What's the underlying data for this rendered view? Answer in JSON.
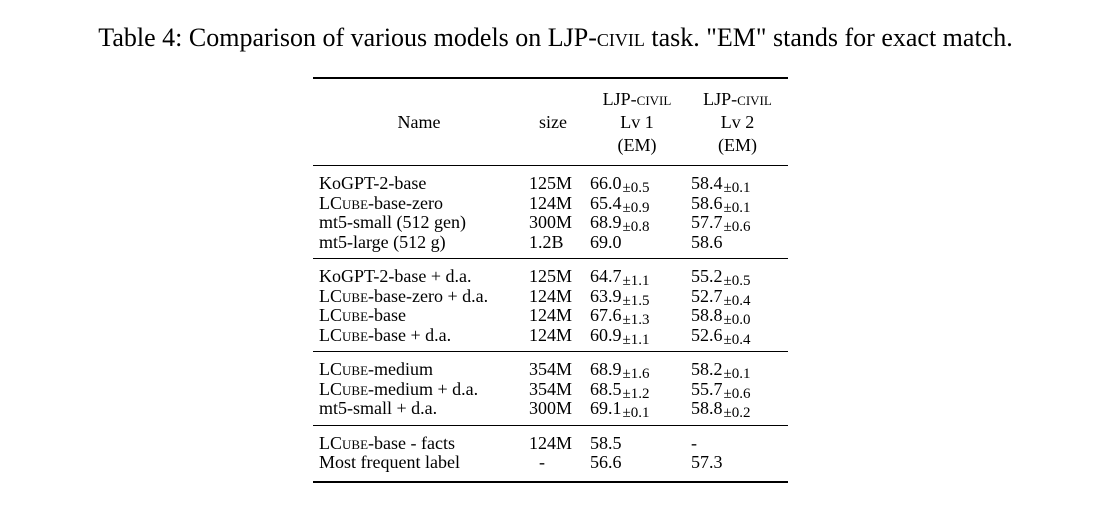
{
  "caption": {
    "prefix": "Table 4: Comparison of various models on LJP-",
    "sc": "civil",
    "suffix": " task. \"EM\" stands for exact match."
  },
  "header": {
    "name": "Name",
    "size": "size",
    "lv1": {
      "line1_a": "LJP-",
      "line1_sc": "civil",
      "line2": "Lv 1",
      "line3": "(EM)"
    },
    "lv2": {
      "line1_a": "LJP-",
      "line1_sc": "civil",
      "line2": "Lv 2",
      "line3": "(EM)"
    }
  },
  "groups": [
    {
      "rows": [
        {
          "name_plain": "KoGPT-2-base",
          "size": "125M",
          "lv1": "66.0",
          "lv1_pm": "±0.5",
          "lv2": "58.4",
          "lv2_pm": "±0.1"
        },
        {
          "name_a": "LC",
          "name_sc": "ube",
          "name_b": "-base-zero",
          "size": "124M",
          "lv1": "65.4",
          "lv1_pm": "±0.9",
          "lv2": "58.6",
          "lv2_pm": "±0.1"
        },
        {
          "name_plain": "mt5-small (512 gen)",
          "size": "300M",
          "lv1": "68.9",
          "lv1_pm": "±0.8",
          "lv2": "57.7",
          "lv2_pm": "±0.6"
        },
        {
          "name_plain": "mt5-large (512 g)",
          "size": "1.2B",
          "lv1": "69.0",
          "lv1_pm": "",
          "lv2": "58.6",
          "lv2_pm": ""
        }
      ]
    },
    {
      "rows": [
        {
          "name_plain": "KoGPT-2-base + d.a.",
          "size": "125M",
          "lv1": "64.7",
          "lv1_pm": "±1.1",
          "lv2": "55.2",
          "lv2_pm": "±0.5"
        },
        {
          "name_a": "LC",
          "name_sc": "ube",
          "name_b": "-base-zero + d.a.",
          "size": "124M",
          "lv1": "63.9",
          "lv1_pm": "±1.5",
          "lv2": "52.7",
          "lv2_pm": "±0.4"
        },
        {
          "name_a": "LC",
          "name_sc": "ube",
          "name_b": "-base",
          "size": "124M",
          "lv1": "67.6",
          "lv1_pm": "±1.3",
          "lv2": "58.8",
          "lv2_pm": "±0.0"
        },
        {
          "name_a": "LC",
          "name_sc": "ube",
          "name_b": "-base + d.a.",
          "size": "124M",
          "lv1": "60.9",
          "lv1_pm": "±1.1",
          "lv2": "52.6",
          "lv2_pm": "±0.4"
        }
      ]
    },
    {
      "rows": [
        {
          "name_a": "LC",
          "name_sc": "ube",
          "name_b": "-medium",
          "size": "354M",
          "lv1": "68.9",
          "lv1_pm": "±1.6",
          "lv2": "58.2",
          "lv2_pm": "±0.1"
        },
        {
          "name_a": "LC",
          "name_sc": "ube",
          "name_b": "-medium + d.a.",
          "size": "354M",
          "lv1": "68.5",
          "lv1_pm": "±1.2",
          "lv2": "55.7",
          "lv2_pm": "±0.6"
        },
        {
          "name_plain": "mt5-small + d.a.",
          "size": "300M",
          "lv1": "69.1",
          "lv1_pm": "±0.1",
          "lv2": "58.8",
          "lv2_pm": "±0.2"
        }
      ]
    },
    {
      "rows": [
        {
          "name_a": "LC",
          "name_sc": "ube",
          "name_b": "-base - facts",
          "size": "124M",
          "lv1": "58.5",
          "lv1_pm": "",
          "lv2": "-",
          "lv2_pm": ""
        },
        {
          "name_plain": "Most frequent label",
          "size": "-",
          "lv1": "56.6",
          "lv1_pm": "",
          "lv2": "57.3",
          "lv2_pm": ""
        }
      ]
    }
  ]
}
